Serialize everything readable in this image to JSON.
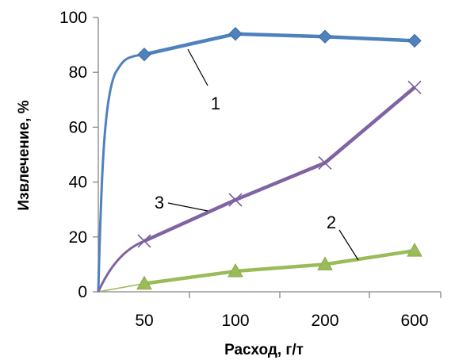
{
  "chart_data": {
    "type": "line",
    "title": "",
    "xlabel": "Расход, г/т",
    "ylabel": "Извлечение, %",
    "categories": [
      "50",
      "100",
      "200",
      "600"
    ],
    "ylim": [
      0,
      100
    ],
    "yticks": [
      "0",
      "20",
      "40",
      "60",
      "80",
      "100"
    ],
    "grid": false,
    "legend": "none",
    "series": [
      {
        "name": "1",
        "marker": "diamond",
        "color": "#4F81BD",
        "start": 0,
        "values": [
          86.5,
          94,
          93,
          91.5
        ]
      },
      {
        "name": "2",
        "marker": "triangle",
        "color": "#9BBB59",
        "start": 0,
        "values": [
          3,
          7.5,
          10,
          15
        ]
      },
      {
        "name": "3",
        "marker": "x",
        "color": "#8064A2",
        "start": 0,
        "values": [
          18.5,
          33.5,
          47,
          74.5
        ]
      }
    ]
  }
}
